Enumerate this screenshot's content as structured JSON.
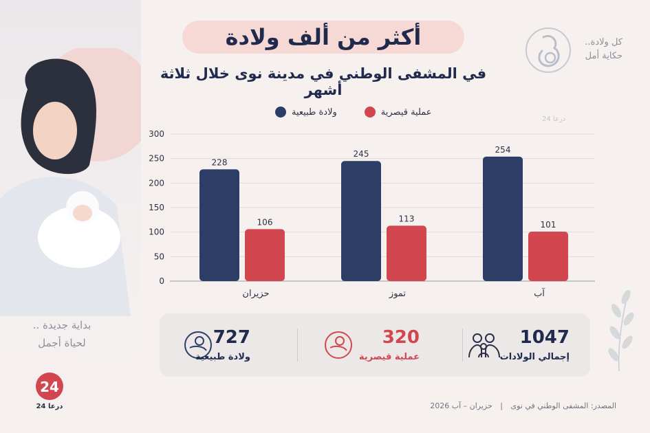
{
  "header": {
    "title": "أكثر من ألف ولادة",
    "subtitle": "في المشفى الوطني في مدينة نوى خلال ثلاثة أشهر"
  },
  "badge": {
    "line1": "كل ولادة..",
    "line2": "حكاية أمل"
  },
  "watermark": "درعا 24",
  "tagline": {
    "line1": "بداية جديدة ..",
    "line2": "لحياة أجمل"
  },
  "logo_text": "درعا 24",
  "colors": {
    "natural": "#2d3e66",
    "cesarean": "#d2464f",
    "grid": "#dedada",
    "axis_text": "#2b2f45"
  },
  "chart_data": {
    "type": "bar",
    "categories": [
      "حزيران",
      "تموز",
      "آب"
    ],
    "series": [
      {
        "name": "ولادة طبيعية",
        "values": [
          228,
          245,
          254
        ]
      },
      {
        "name": "عملية قيصرية",
        "values": [
          106,
          113,
          101
        ]
      }
    ],
    "ylim": [
      0,
      300
    ],
    "yticks": [
      0,
      50,
      100,
      150,
      200,
      250,
      300
    ],
    "grid": true,
    "legend_position": "top"
  },
  "summary": {
    "total": {
      "value": "1047",
      "label": "إجمالي الولادات",
      "icon": "family-icon"
    },
    "cesarean": {
      "value": "320",
      "label": "عملية قيصرية",
      "icon": "baby-icon"
    },
    "natural": {
      "value": "727",
      "label": "ولادة طبيعية",
      "icon": "baby-icon"
    }
  },
  "source": {
    "label": "المصدر: المشفى الوطني في نوى",
    "separator": "|",
    "period": "حزيران – آب 2026"
  }
}
